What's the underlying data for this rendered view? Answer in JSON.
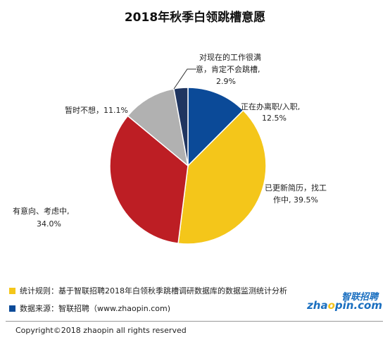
{
  "chart_data": {
    "type": "pie",
    "title": "2018年秋季白领跳槽意愿",
    "slices": [
      {
        "label": "正在办离职/入职,",
        "value_label": "12.5%",
        "value": 12.5,
        "color": "#0b4a98"
      },
      {
        "label": "已更新简历，找工作中,",
        "value_label": "39.5%",
        "value": 39.5,
        "color": "#f4c61a"
      },
      {
        "label": "有意向、考虑中,",
        "value_label": "34.0%",
        "value": 34.0,
        "color": "#bd1e24"
      },
      {
        "label": "暂时不想，",
        "value_label": "11.1%",
        "value": 11.1,
        "color": "#b1b1b1"
      },
      {
        "label": "对现在的工作很满意，肯定不会跳槽,",
        "value_label": "2.9%",
        "value": 2.9,
        "color": "#1f3560"
      }
    ],
    "legend": "none"
  },
  "labels": {
    "s0_line1": "正在办离职/入职,",
    "s0_line2": "12.5%",
    "s1_line1": "已更新简历，找工",
    "s1_line2": "作中, 39.5%",
    "s2_line1": "有意向、考虑中,",
    "s2_line2": "34.0%",
    "s3_line1": "暂时不想，11.1%",
    "s4_line1": "对现在的工作很满",
    "s4_line2": "意，肯定不会跳槽,",
    "s4_line3": "2.9%"
  },
  "footer": {
    "rules": "统计规则：基于智联招聘2018年白领秋季跳槽调研数据库的数据监测统计分析",
    "source": "数据来源：智联招聘（www.zhaopin.com)",
    "rules_marker_color": "#f4c61a",
    "source_marker_color": "#0b4a98"
  },
  "logo": {
    "cn": "智联招聘",
    "en_pre": "zha",
    "en_o": "o",
    "en_post": "pin.com"
  },
  "copyright": "Copyright©2018 zhaopin all rights reserved"
}
